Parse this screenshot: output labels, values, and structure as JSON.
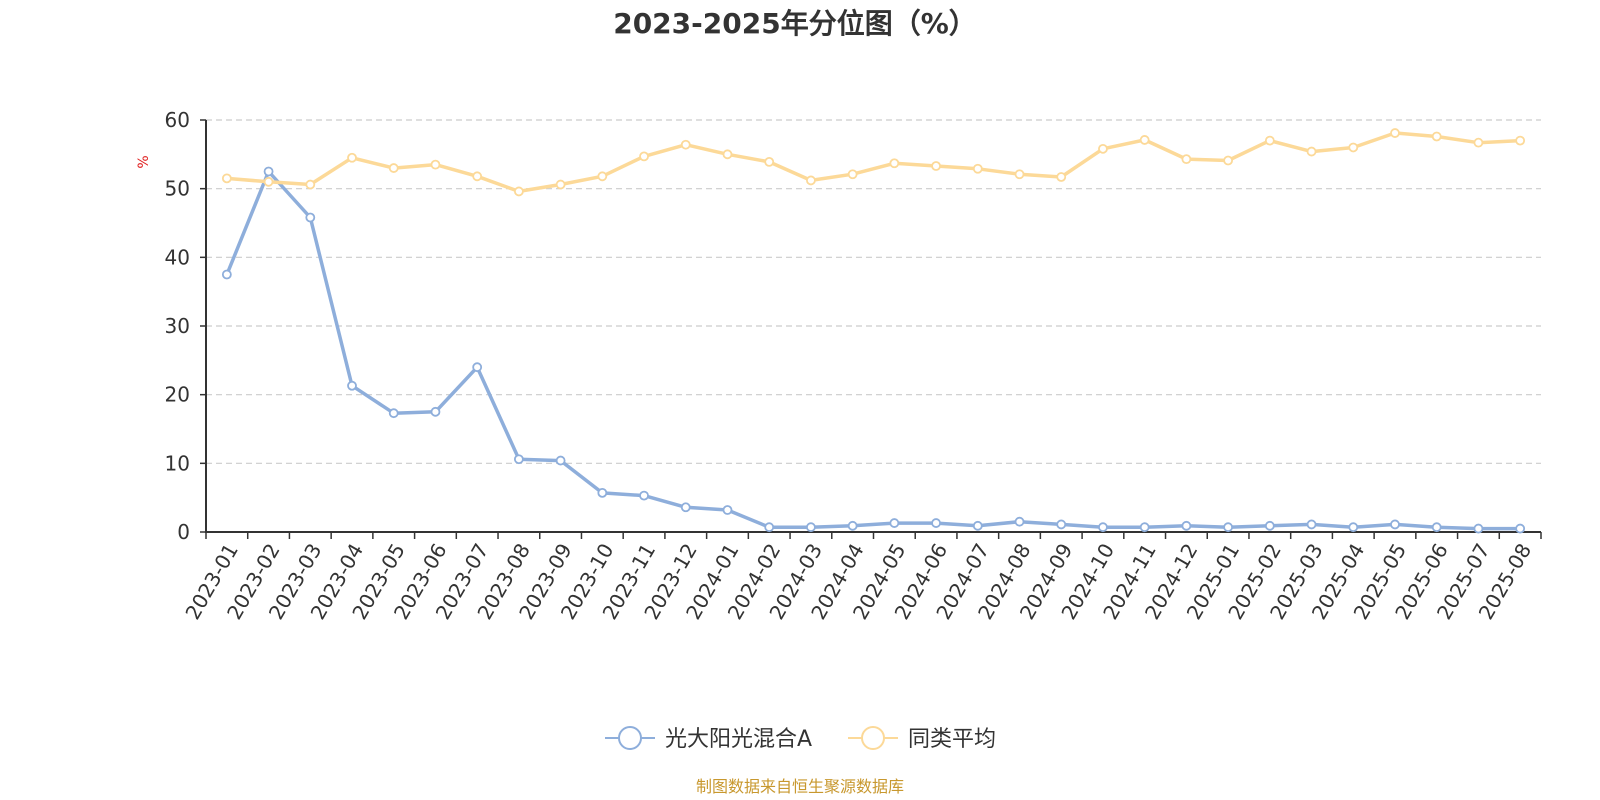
{
  "chart_data": {
    "type": "line",
    "title": "2023-2025年分位图（%）",
    "y_unit": "%",
    "ylim": [
      0,
      60
    ],
    "y_ticks": [
      0,
      10,
      20,
      30,
      40,
      50,
      60
    ],
    "grid": true,
    "legend_position": "bottom-center",
    "x": [
      "2023-01",
      "2023-02",
      "2023-03",
      "2023-04",
      "2023-05",
      "2023-06",
      "2023-07",
      "2023-08",
      "2023-09",
      "2023-10",
      "2023-11",
      "2023-12",
      "2024-01",
      "2024-02",
      "2024-03",
      "2024-04",
      "2024-05",
      "2024-06",
      "2024-07",
      "2024-08",
      "2024-09",
      "2024-10",
      "2024-11",
      "2024-12",
      "2025-01",
      "2025-02",
      "2025-03",
      "2025-04",
      "2025-05",
      "2025-06",
      "2025-07",
      "2025-08"
    ],
    "series": [
      {
        "name": "光大阳光混合A",
        "color": "#8eaedb",
        "values": [
          37.5,
          52.5,
          45.8,
          21.3,
          17.3,
          17.5,
          24.0,
          10.6,
          10.4,
          5.7,
          5.3,
          3.6,
          3.2,
          0.7,
          0.7,
          0.9,
          1.3,
          1.3,
          0.9,
          1.5,
          1.1,
          0.7,
          0.7,
          0.9,
          0.7,
          0.9,
          1.1,
          0.7,
          1.1,
          0.7,
          0.5,
          0.5
        ]
      },
      {
        "name": "同类平均",
        "color": "#fcd998",
        "values": [
          51.5,
          51.0,
          50.6,
          54.5,
          53.0,
          53.5,
          51.8,
          49.6,
          50.6,
          51.8,
          54.7,
          56.4,
          55.0,
          53.9,
          51.2,
          52.1,
          53.7,
          53.3,
          52.9,
          52.1,
          51.7,
          55.8,
          57.1,
          54.3,
          54.1,
          57.0,
          55.4,
          56.0,
          58.1,
          57.6,
          56.7,
          57.0
        ]
      }
    ]
  },
  "footer": {
    "source": "制图数据来自恒生聚源数据库",
    "source_color": "#c8982e"
  },
  "unit_color": "#e02020"
}
